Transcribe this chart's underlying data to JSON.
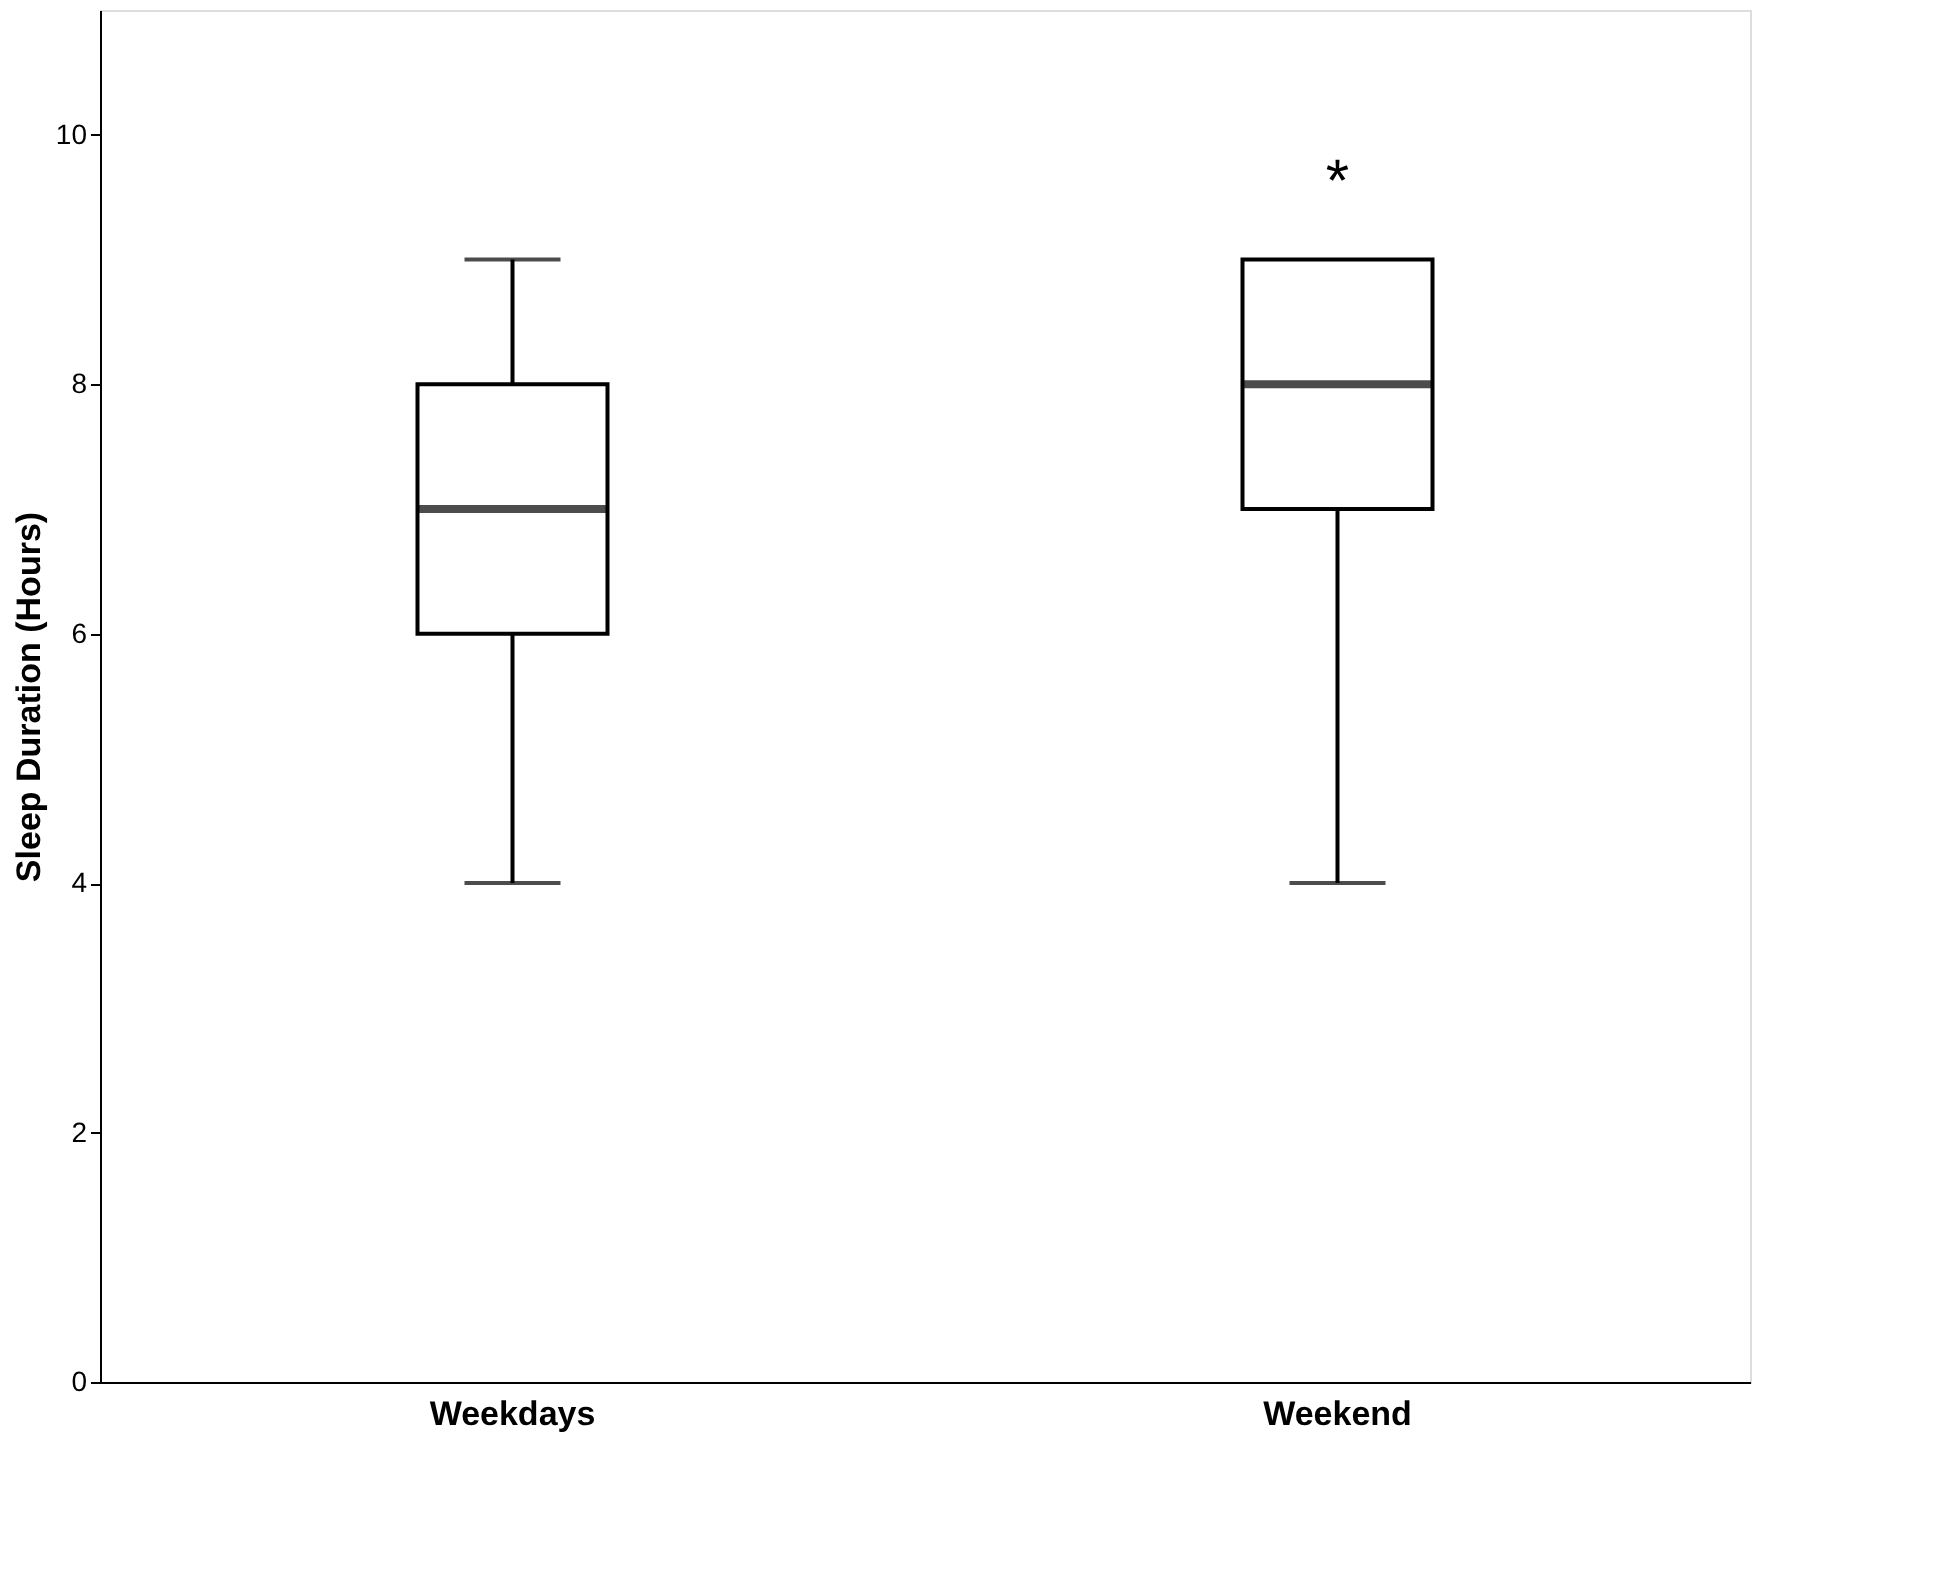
{
  "chart_data": {
    "type": "box",
    "ylabel": "Sleep Duration (Hours)",
    "categories": [
      "Weekdays",
      "Weekend"
    ],
    "boxes": [
      {
        "low": 4,
        "q1": 6,
        "median": 7,
        "q3": 8,
        "high": 9
      },
      {
        "low": 4,
        "q1": 7,
        "median": 8,
        "q3": 9,
        "high": 9
      }
    ],
    "ylim": [
      0,
      11
    ],
    "yticks": [
      0,
      2,
      4,
      6,
      8,
      10
    ],
    "grid": false,
    "annotations": [
      "*"
    ]
  }
}
